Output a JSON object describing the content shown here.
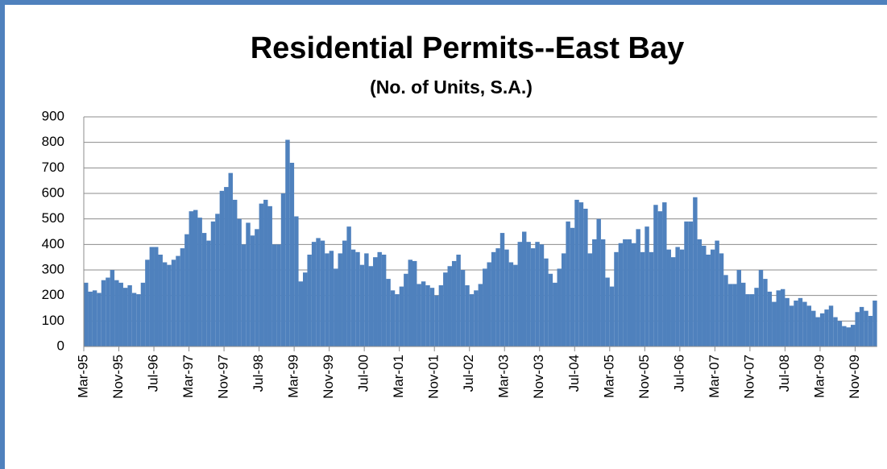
{
  "chart_data": {
    "type": "bar",
    "title": "Residential Permits--East Bay",
    "subtitle": "(No. of Units, S.A.)",
    "color": "#4f81bd",
    "grid": true,
    "ylim": [
      0,
      900
    ],
    "yticks": [
      0,
      100,
      200,
      300,
      400,
      500,
      600,
      700,
      800,
      900
    ],
    "categories": [
      "Mar-95",
      null,
      null,
      null,
      null,
      null,
      null,
      null,
      "Nov-95",
      null,
      null,
      null,
      null,
      null,
      null,
      null,
      "Jul-96",
      null,
      null,
      null,
      null,
      null,
      null,
      null,
      "Mar-97",
      null,
      null,
      null,
      null,
      null,
      null,
      null,
      "Nov-97",
      null,
      null,
      null,
      null,
      null,
      null,
      null,
      "Jul-98",
      null,
      null,
      null,
      null,
      null,
      null,
      null,
      "Mar-99",
      null,
      null,
      null,
      null,
      null,
      null,
      null,
      "Nov-99",
      null,
      null,
      null,
      null,
      null,
      null,
      null,
      "Jul-00",
      null,
      null,
      null,
      null,
      null,
      null,
      null,
      "Mar-01",
      null,
      null,
      null,
      null,
      null,
      null,
      null,
      "Nov-01",
      null,
      null,
      null,
      null,
      null,
      null,
      null,
      "Jul-02",
      null,
      null,
      null,
      null,
      null,
      null,
      null,
      "Mar-03",
      null,
      null,
      null,
      null,
      null,
      null,
      null,
      "Nov-03",
      null,
      null,
      null,
      null,
      null,
      null,
      null,
      "Jul-04",
      null,
      null,
      null,
      null,
      null,
      null,
      null,
      "Mar-05",
      null,
      null,
      null,
      null,
      null,
      null,
      null,
      "Nov-05",
      null,
      null,
      null,
      null,
      null,
      null,
      null,
      "Jul-06",
      null,
      null,
      null,
      null,
      null,
      null,
      null,
      "Mar-07",
      null,
      null,
      null,
      null,
      null,
      null,
      null,
      "Nov-07",
      null,
      null,
      null,
      null,
      null,
      null,
      null,
      "Jul-08",
      null,
      null,
      null,
      null,
      null,
      null,
      null,
      "Mar-09",
      null,
      null,
      null,
      null,
      null,
      null,
      null,
      "Nov-09",
      null,
      null,
      null,
      null
    ],
    "values": [
      250,
      215,
      220,
      210,
      260,
      270,
      300,
      260,
      250,
      230,
      240,
      210,
      205,
      250,
      340,
      390,
      390,
      360,
      330,
      320,
      340,
      355,
      385,
      440,
      530,
      535,
      505,
      445,
      415,
      490,
      520,
      610,
      625,
      680,
      575,
      500,
      400,
      485,
      435,
      460,
      560,
      575,
      550,
      400,
      400,
      600,
      810,
      720,
      510,
      255,
      290,
      360,
      410,
      425,
      415,
      365,
      375,
      305,
      365,
      415,
      470,
      380,
      370,
      320,
      365,
      315,
      350,
      370,
      360,
      265,
      220,
      205,
      235,
      285,
      340,
      335,
      245,
      255,
      240,
      230,
      200,
      240,
      290,
      315,
      335,
      360,
      300,
      240,
      205,
      220,
      245,
      305,
      330,
      370,
      385,
      445,
      380,
      330,
      320,
      410,
      450,
      410,
      385,
      410,
      400,
      345,
      285,
      250,
      305,
      365,
      490,
      465,
      575,
      565,
      540,
      365,
      420,
      500,
      420,
      270,
      235,
      370,
      405,
      420,
      420,
      405,
      460,
      370,
      470,
      370,
      555,
      530,
      565,
      380,
      350,
      390,
      380,
      490,
      490,
      585,
      420,
      395,
      360,
      380,
      415,
      365,
      280,
      245,
      245,
      300,
      250,
      205,
      205,
      230,
      300,
      265,
      215,
      175,
      220,
      225,
      190,
      160,
      180,
      190,
      175,
      160,
      140,
      115,
      130,
      145,
      160,
      115,
      100,
      80,
      75,
      85,
      135,
      155,
      140,
      120,
      180
    ]
  }
}
